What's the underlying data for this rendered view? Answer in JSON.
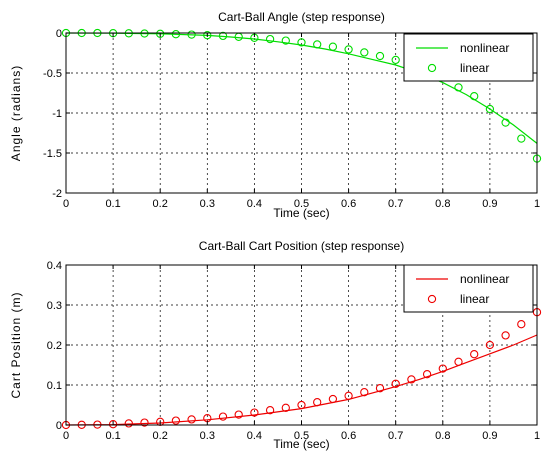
{
  "chart_data": [
    {
      "type": "line",
      "title": "Cart-Ball Angle (step response)",
      "xlabel": "Time (sec)",
      "ylabel": "Angle (radians)",
      "xlim": [
        0,
        1
      ],
      "ylim": [
        -2,
        0
      ],
      "xticks": [
        0,
        0.1,
        0.2,
        0.3,
        0.4,
        0.5,
        0.6,
        0.7,
        0.8,
        0.9,
        1
      ],
      "yticks": [
        0,
        -0.5,
        -1,
        -1.5,
        -2
      ],
      "xtick_labels": [
        "0",
        "0.1",
        "0.2",
        "0.3",
        "0.4",
        "0.5",
        "0.6",
        "0.7",
        "0.8",
        "0.9",
        "1"
      ],
      "ytick_labels": [
        "0",
        "-0.5",
        "-1",
        "-1.5",
        "-2"
      ],
      "grid": true,
      "legend_position": "top-right",
      "series": [
        {
          "name": "nonlinear",
          "style": "line",
          "color": "#00dd00",
          "x": [
            0,
            0.1,
            0.2,
            0.3,
            0.35,
            0.4,
            0.45,
            0.5,
            0.55,
            0.6,
            0.65,
            0.7,
            0.75,
            0.8,
            0.85,
            0.9,
            0.95,
            1.0
          ],
          "y": [
            0,
            -0.003,
            -0.01,
            -0.03,
            -0.05,
            -0.075,
            -0.11,
            -0.15,
            -0.2,
            -0.26,
            -0.33,
            -0.4,
            -0.5,
            -0.62,
            -0.77,
            -0.95,
            -1.15,
            -1.38
          ]
        },
        {
          "name": "linear",
          "style": "markers",
          "color": "#00dd00",
          "x": [
            0,
            0.0333,
            0.0667,
            0.1,
            0.1333,
            0.1667,
            0.2,
            0.2333,
            0.2667,
            0.3,
            0.3333,
            0.3667,
            0.4,
            0.4333,
            0.4667,
            0.5,
            0.5333,
            0.5667,
            0.6,
            0.6333,
            0.6667,
            0.7,
            0.7333,
            0.7667,
            0.8,
            0.8333,
            0.8667,
            0.9,
            0.9333,
            0.9667,
            1.0
          ],
          "y": [
            0,
            0,
            0,
            -0.002,
            -0.004,
            -0.006,
            -0.01,
            -0.015,
            -0.02,
            -0.027,
            -0.036,
            -0.047,
            -0.06,
            -0.076,
            -0.095,
            -0.117,
            -0.142,
            -0.171,
            -0.205,
            -0.243,
            -0.287,
            -0.336,
            -0.392,
            -0.455,
            -0.526,
            -0.68,
            -0.79,
            -0.95,
            -1.12,
            -1.32,
            -1.57
          ]
        }
      ]
    },
    {
      "type": "line",
      "title": "Cart-Ball Cart Position (step response)",
      "xlabel": "Time (sec)",
      "ylabel": "Cart Position (m)",
      "xlim": [
        0,
        1
      ],
      "ylim": [
        0,
        0.4
      ],
      "xticks": [
        0,
        0.1,
        0.2,
        0.3,
        0.4,
        0.5,
        0.6,
        0.7,
        0.8,
        0.9,
        1
      ],
      "yticks": [
        0,
        0.1,
        0.2,
        0.3,
        0.4
      ],
      "xtick_labels": [
        "0",
        "0.1",
        "0.2",
        "0.3",
        "0.4",
        "0.5",
        "0.6",
        "0.7",
        "0.8",
        "0.9",
        "1"
      ],
      "ytick_labels": [
        "0",
        "0.1",
        "0.2",
        "0.3",
        "0.4"
      ],
      "grid": true,
      "legend_position": "top-right",
      "series": [
        {
          "name": "nonlinear",
          "style": "line",
          "color": "#ee0000",
          "x": [
            0,
            0.1,
            0.2,
            0.3,
            0.4,
            0.5,
            0.6,
            0.7,
            0.75,
            0.8,
            0.85,
            0.9,
            0.95,
            1.0
          ],
          "y": [
            0,
            0.001,
            0.005,
            0.013,
            0.025,
            0.041,
            0.064,
            0.096,
            0.114,
            0.134,
            0.156,
            0.178,
            0.2,
            0.225
          ]
        },
        {
          "name": "linear",
          "style": "markers",
          "color": "#ee0000",
          "x": [
            0,
            0.0333,
            0.0667,
            0.1,
            0.1333,
            0.1667,
            0.2,
            0.2333,
            0.2667,
            0.3,
            0.3333,
            0.3667,
            0.4,
            0.4333,
            0.4667,
            0.5,
            0.5333,
            0.5667,
            0.6,
            0.6333,
            0.6667,
            0.7,
            0.7333,
            0.7667,
            0.8,
            0.8333,
            0.8667,
            0.9,
            0.9333,
            0.9667,
            1.0
          ],
          "y": [
            0,
            0.0005,
            0.001,
            0.002,
            0.004,
            0.006,
            0.008,
            0.011,
            0.014,
            0.017,
            0.021,
            0.026,
            0.031,
            0.037,
            0.043,
            0.05,
            0.057,
            0.065,
            0.073,
            0.082,
            0.092,
            0.103,
            0.114,
            0.127,
            0.141,
            0.158,
            0.177,
            0.2,
            0.224,
            0.252,
            0.282
          ]
        }
      ]
    }
  ]
}
